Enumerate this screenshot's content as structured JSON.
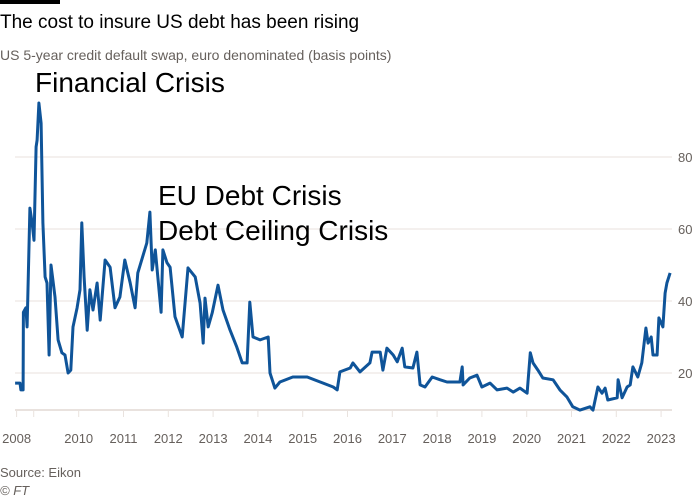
{
  "header": {
    "title": "The cost to insure US debt has been rising",
    "subtitle": "US 5-year credit default swap, euro denominated (basis points)"
  },
  "footer": {
    "source": "Source: Eikon",
    "copyright": "© FT"
  },
  "colors": {
    "line": "#0f5499",
    "grid": "#e9e2de",
    "axis_text": "#66605c"
  },
  "chart_data": {
    "type": "line",
    "title": "The cost to insure US debt has been rising",
    "xlabel": "",
    "ylabel": "basis points",
    "ylim": [
      9.7,
      95
    ],
    "xlim": [
      2007.95,
      2023.3
    ],
    "grid": true,
    "x_ticks": [
      "2008",
      "2010",
      "2011",
      "2012",
      "2013",
      "2014",
      "2015",
      "2016",
      "2017",
      "2018",
      "2019",
      "2020",
      "2021",
      "2022",
      "2023"
    ],
    "y_ticks": [
      "20",
      "40",
      "60",
      "80"
    ],
    "annotations": [
      {
        "text": "Financial Crisis",
        "x": 2008.7,
        "y": 95
      },
      {
        "text": "EU Debt Crisis",
        "x": 2011.6,
        "y": 65
      },
      {
        "text": "Debt Ceiling Crisis",
        "x": 2011.6,
        "y": 65
      }
    ],
    "series": [
      {
        "name": "US 5-year CDS (EUR)",
        "x": [
          2007.95,
          2008.11,
          2008.14,
          2008.21,
          2008.22,
          2008.3,
          2008.34,
          2008.43,
          2008.5,
          2008.56,
          2008.63,
          2008.66,
          2008.72,
          2008.79,
          2008.85,
          2008.92,
          2008.98,
          2009.05,
          2009.11,
          2009.17,
          2009.24,
          2009.34,
          2009.46,
          2009.56,
          2009.66,
          2009.75,
          2009.82,
          2009.95,
          2010.03,
          2010.07,
          2010.12,
          2010.19,
          2010.25,
          2010.32,
          2010.41,
          2010.48,
          2010.59,
          2010.7,
          2010.81,
          2010.92,
          2011.03,
          2011.15,
          2011.26,
          2011.32,
          2011.44,
          2011.52,
          2011.59,
          2011.64,
          2011.71,
          2011.84,
          2011.88,
          2011.97,
          2012.04,
          2012.15,
          2012.31,
          2012.44,
          2012.6,
          2012.71,
          2012.78,
          2012.82,
          2012.89,
          2012.98,
          2013.11,
          2013.22,
          2013.38,
          2013.53,
          2013.65,
          2013.76,
          2013.82,
          2013.89,
          2014.05,
          2014.23,
          2014.27,
          2014.38,
          2014.49,
          2014.78,
          2015.1,
          2015.39,
          2015.68,
          2015.77,
          2015.83,
          2016.06,
          2016.12,
          2016.28,
          2016.5,
          2016.55,
          2016.73,
          2016.79,
          2016.88,
          2017.02,
          2017.11,
          2017.22,
          2017.28,
          2017.46,
          2017.55,
          2017.62,
          2017.73,
          2017.89,
          2018.07,
          2018.22,
          2018.51,
          2018.56,
          2018.58,
          2018.73,
          2018.89,
          2019.0,
          2019.18,
          2019.34,
          2019.56,
          2019.7,
          2019.85,
          2020.01,
          2020.08,
          2020.14,
          2020.25,
          2020.36,
          2020.59,
          2020.74,
          2020.9,
          2021.03,
          2021.19,
          2021.41,
          2021.48,
          2021.59,
          2021.68,
          2021.75,
          2021.81,
          2022.02,
          2022.04,
          2022.13,
          2022.24,
          2022.31,
          2022.37,
          2022.48,
          2022.57,
          2022.66,
          2022.71,
          2022.78,
          2022.82,
          2022.91,
          2022.95,
          2023.04,
          2023.09,
          2023.13,
          2023.2
        ],
        "values": [
          17.2,
          17.2,
          15.3,
          15.3,
          36.9,
          38.1,
          32.8,
          65.8,
          61.7,
          56.9,
          82.8,
          84.7,
          95.0,
          89.4,
          61.7,
          46.7,
          45.0,
          25.0,
          50.0,
          45.8,
          41.1,
          29.2,
          25.6,
          25.0,
          20.0,
          20.8,
          32.8,
          38.1,
          43.1,
          61.7,
          46.7,
          31.9,
          43.1,
          37.5,
          45.0,
          34.7,
          51.4,
          49.4,
          38.1,
          41.1,
          51.4,
          45.0,
          38.1,
          47.8,
          52.8,
          56.1,
          64.7,
          48.6,
          54.2,
          36.9,
          54.2,
          50.6,
          49.4,
          35.6,
          30.0,
          49.2,
          46.7,
          39.4,
          28.3,
          40.8,
          32.8,
          36.7,
          44.4,
          37.5,
          31.9,
          27.2,
          22.8,
          22.8,
          39.7,
          30.0,
          29.2,
          30.0,
          20.0,
          15.8,
          17.5,
          18.9,
          18.9,
          17.5,
          16.1,
          15.3,
          20.3,
          21.4,
          22.8,
          20.3,
          22.8,
          25.8,
          25.8,
          20.8,
          26.9,
          25.0,
          23.1,
          26.9,
          21.7,
          21.4,
          25.8,
          16.7,
          16.1,
          18.9,
          18.1,
          17.5,
          17.5,
          21.7,
          16.7,
          18.6,
          19.4,
          16.1,
          17.2,
          15.3,
          15.8,
          14.7,
          15.8,
          14.4,
          25.6,
          22.8,
          20.8,
          18.6,
          18.1,
          15.3,
          13.3,
          10.6,
          9.7,
          10.6,
          9.7,
          16.1,
          14.4,
          15.8,
          12.5,
          13.1,
          18.1,
          13.1,
          16.1,
          16.7,
          21.7,
          18.9,
          22.8,
          32.5,
          28.3,
          30.0,
          25.0,
          25.0,
          35.3,
          32.8,
          42.2,
          45.0,
          47.8
        ]
      }
    ]
  }
}
